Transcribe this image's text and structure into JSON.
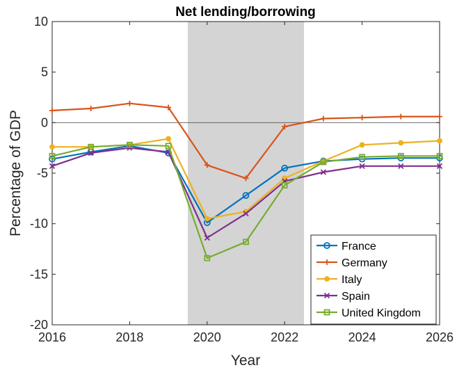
{
  "chart_data": {
    "type": "line",
    "title": "Net lending/borrowing",
    "xlabel": "Year",
    "ylabel": "Percentage of GDP",
    "xlim": [
      2016,
      2026
    ],
    "ylim": [
      -20,
      10
    ],
    "xticks": [
      2016,
      2018,
      2020,
      2022,
      2024,
      2026
    ],
    "yticks": [
      10,
      5,
      0,
      -5,
      -10,
      -15,
      -20
    ],
    "shaded_region": [
      2019.5,
      2022.5
    ],
    "reference_line_y": 0,
    "legend_position": "bottom-right",
    "grid": false,
    "x": [
      2016,
      2017,
      2018,
      2019,
      2020,
      2021,
      2022,
      2023,
      2024,
      2025,
      2026
    ],
    "series": [
      {
        "name": "France",
        "color": "#0072BD",
        "marker": "circle",
        "values": [
          -3.6,
          -2.9,
          -2.3,
          -3.0,
          -9.9,
          -7.2,
          -4.5,
          -3.8,
          -3.6,
          -3.5,
          -3.5
        ]
      },
      {
        "name": "Germany",
        "color": "#D95319",
        "marker": "plus",
        "values": [
          1.2,
          1.4,
          1.9,
          1.5,
          -4.2,
          -5.5,
          -0.4,
          0.4,
          0.5,
          0.6,
          0.6
        ]
      },
      {
        "name": "Italy",
        "color": "#EDB120",
        "marker": "dot",
        "values": [
          -2.4,
          -2.4,
          -2.2,
          -1.6,
          -9.5,
          -8.8,
          -5.5,
          -3.8,
          -2.2,
          -2.0,
          -1.8
        ]
      },
      {
        "name": "Spain",
        "color": "#7E2F8E",
        "marker": "x",
        "values": [
          -4.3,
          -3.0,
          -2.5,
          -2.9,
          -11.4,
          -9.0,
          -5.8,
          -4.9,
          -4.3,
          -4.3,
          -4.3
        ]
      },
      {
        "name": "United Kingdom",
        "color": "#77AC30",
        "marker": "square",
        "values": [
          -3.3,
          -2.4,
          -2.2,
          -2.3,
          -13.4,
          -11.8,
          -6.2,
          -3.9,
          -3.4,
          -3.3,
          -3.3
        ]
      }
    ]
  }
}
